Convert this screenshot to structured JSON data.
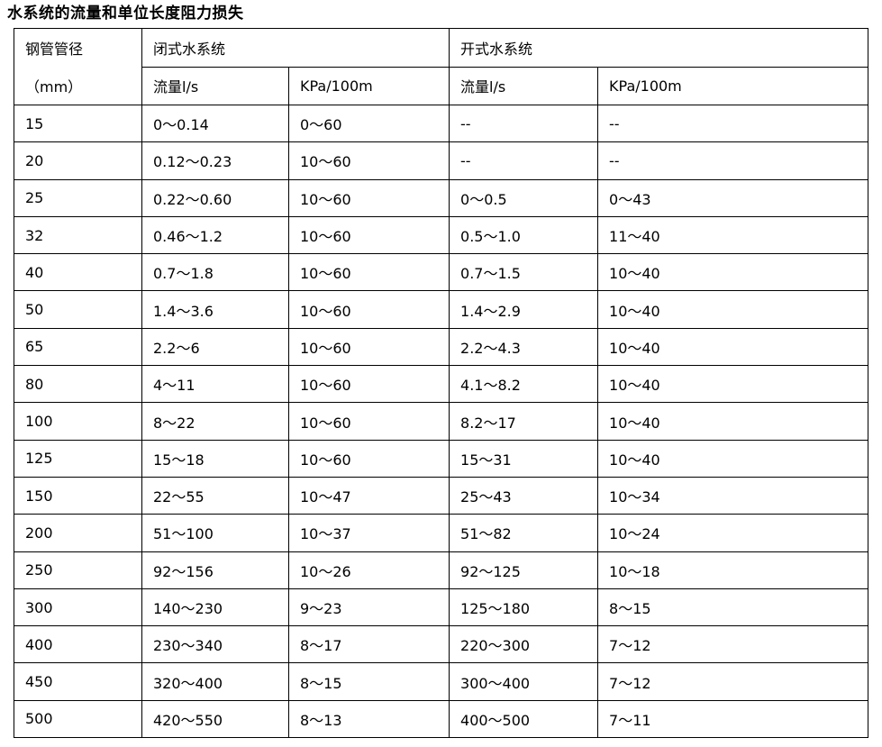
{
  "title": "水系统的流量和单位长度阻力损失",
  "table": {
    "col1_header_line1": "钢管管径",
    "col1_header_line2": "（mm）",
    "group_headers": [
      "闭式水系统",
      "开式水系统"
    ],
    "sub_headers": [
      "流量l/s",
      "KPa/100m",
      "流量l/s",
      "KPa/100m"
    ],
    "rows": [
      [
        "15",
        "0～0.14",
        "0～60",
        "--",
        "--"
      ],
      [
        "20",
        "0.12～0.23",
        "10～60",
        "--",
        "--"
      ],
      [
        "25",
        "0.22～0.60",
        "10～60",
        "0～0.5",
        "0～43"
      ],
      [
        "32",
        "0.46～1.2",
        "10～60",
        "0.5～1.0",
        "11～40"
      ],
      [
        "40",
        "0.7～1.8",
        "10～60",
        "0.7～1.5",
        "10～40"
      ],
      [
        "50",
        "1.4～3.6",
        "10～60",
        "1.4～2.9",
        "10～40"
      ],
      [
        "65",
        "2.2～6",
        "10～60",
        "2.2～4.3",
        "10～40"
      ],
      [
        "80",
        "4～11",
        "10～60",
        "4.1～8.2",
        "10～40"
      ],
      [
        "100",
        "8～22",
        "10～60",
        "8.2～17",
        "10～40"
      ],
      [
        "125",
        "15～18",
        "10～60",
        "15～31",
        "10～40"
      ],
      [
        "150",
        "22～55",
        "10～47",
        "25～43",
        "10～34"
      ],
      [
        "200",
        "51～100",
        "10～37",
        "51～82",
        "10～24"
      ],
      [
        "250",
        "92～156",
        "10～26",
        "92～125",
        "10～18"
      ],
      [
        "300",
        "140～230",
        "9～23",
        "125～180",
        "8～15"
      ],
      [
        "400",
        "230～340",
        "8～17",
        "220～300",
        "7～12"
      ],
      [
        "450",
        "320～400",
        "8～15",
        "300～400",
        "7～12"
      ],
      [
        "500",
        "420～550",
        "8～13",
        "400～500",
        "7～11"
      ]
    ]
  }
}
